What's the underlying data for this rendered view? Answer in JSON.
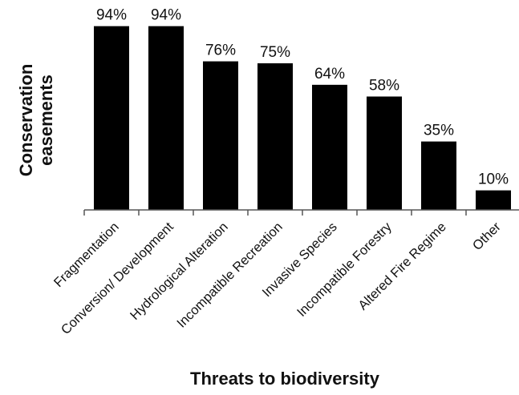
{
  "chart_data": {
    "type": "bar",
    "categories": [
      "Fragmentation",
      "Conversion/ Development",
      "Hydrological Alteration",
      "Incompatible Recreation",
      "Invasive Species",
      "Incompatible Forestry",
      "Altered Fire Regime",
      "Other"
    ],
    "values": [
      94,
      94,
      76,
      75,
      64,
      58,
      35,
      10
    ],
    "data_labels": [
      "94%",
      "94%",
      "76%",
      "75%",
      "64%",
      "58%",
      "35%",
      "10%"
    ],
    "xlabel": "Threats to biodiversity",
    "ylabel": [
      "Conservation",
      "easements"
    ],
    "ylim": [
      0,
      100
    ],
    "bar_color": "#000000",
    "grid": false,
    "legend": "none"
  }
}
